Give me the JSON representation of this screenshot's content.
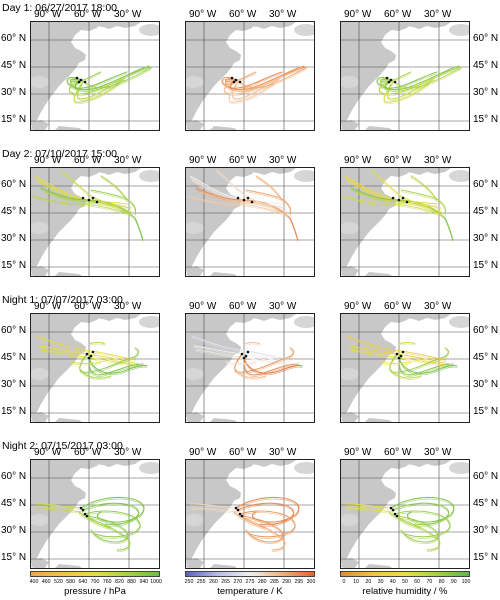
{
  "figure": {
    "lon_labels": [
      "90° W",
      "60° W",
      "30° W"
    ],
    "lat_labels": [
      "60° N",
      "45° N",
      "30° N",
      "15° N"
    ],
    "rows": [
      {
        "title": "Day 1:  06/27/2017 18:00",
        "pattern": "d1"
      },
      {
        "title": "Day 2:  07/10/2017 15:00",
        "pattern": "d2"
      },
      {
        "title": "Night 1:  07/07/2017 03:00",
        "pattern": "n1"
      },
      {
        "title": "Night 2:  07/15/2017 03:00",
        "pattern": "n2"
      }
    ],
    "variables": [
      "pressure",
      "temperature",
      "relative_humidity"
    ],
    "colorbars": [
      {
        "name": "pressure",
        "label": "pressure / hPa",
        "ticks": [
          "400",
          "460",
          "520",
          "580",
          "640",
          "700",
          "760",
          "820",
          "880",
          "940",
          "1000"
        ],
        "colors": [
          "#f2a25a",
          "#f5c04a",
          "#e6de4a",
          "#a8d14a",
          "#6cbe45"
        ]
      },
      {
        "name": "temperature",
        "label": "temperature / K",
        "ticks": [
          "250",
          "255",
          "260",
          "265",
          "270",
          "275",
          "280",
          "285",
          "290",
          "295",
          "300"
        ],
        "colors": [
          "#5b63c9",
          "#b8bde6",
          "#f0f0f0",
          "#f2b27a",
          "#e0672a"
        ]
      },
      {
        "name": "relative_humidity",
        "label": "relative humidity / %",
        "ticks": [
          "0",
          "10",
          "20",
          "30",
          "40",
          "50",
          "60",
          "70",
          "80",
          "90",
          "100"
        ],
        "colors": [
          "#e58a3a",
          "#f2c24a",
          "#e8e04a",
          "#a8d14a",
          "#5fb845"
        ]
      }
    ]
  }
}
